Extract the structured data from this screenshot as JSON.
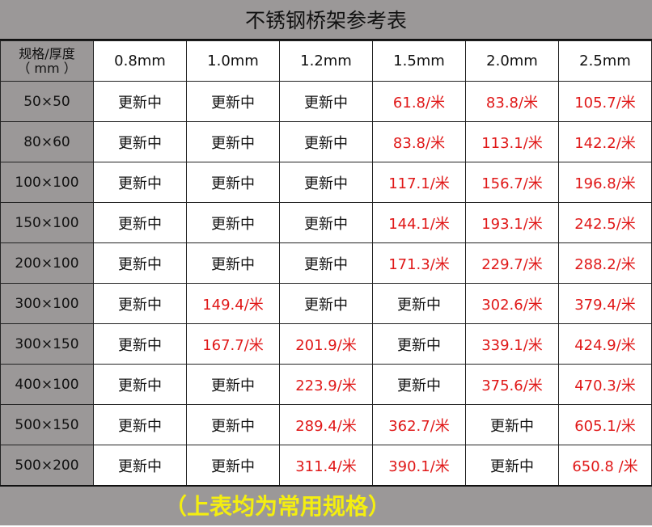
{
  "title": "不锈钢桥架参考表",
  "header": {
    "corner_line1": "规格/厚度",
    "corner_line2": "（ mm ）",
    "columns": [
      "0.8mm",
      "1.0mm",
      "1.2mm",
      "1.5mm",
      "2.0mm",
      "2.5mm"
    ]
  },
  "rows": [
    {
      "spec": "50×50",
      "values": [
        "更新中",
        "更新中",
        "更新中",
        "61.8/米",
        "83.8/米",
        "105.7/米"
      ]
    },
    {
      "spec": "80×60",
      "values": [
        "更新中",
        "更新中",
        "更新中",
        "83.8/米",
        "113.1/米",
        "142.2/米"
      ]
    },
    {
      "spec": "100×100",
      "values": [
        "更新中",
        "更新中",
        "更新中",
        "117.1/米",
        "156.7/米",
        "196.8/米"
      ]
    },
    {
      "spec": "150×100",
      "values": [
        "更新中",
        "更新中",
        "更新中",
        "144.1/米",
        "193.1/米",
        "242.5/米"
      ]
    },
    {
      "spec": "200×100",
      "values": [
        "更新中",
        "更新中",
        "更新中",
        "171.3/米",
        "229.7/米",
        "288.2/米"
      ]
    },
    {
      "spec": "300×100",
      "values": [
        "更新中",
        "149.4/米",
        "更新中",
        "更新中",
        "302.6/米",
        "379.4/米"
      ]
    },
    {
      "spec": "300×150",
      "values": [
        "更新中",
        "167.7/米",
        "201.9/米",
        "更新中",
        "339.1/米",
        "424.9/米"
      ]
    },
    {
      "spec": "400×100",
      "values": [
        "更新中",
        "更新中",
        "223.9/米",
        "更新中",
        "375.6/米",
        "470.3/米"
      ]
    },
    {
      "spec": "500×150",
      "values": [
        "更新中",
        "更新中",
        "289.4/米",
        "362.7/米",
        "更新中",
        "605.1/米"
      ]
    },
    {
      "spec": "500×200",
      "values": [
        "更新中",
        "更新中",
        "311.4/米",
        "390.1/米",
        "更新中",
        "650.8 /米"
      ]
    }
  ],
  "footer": "（上表均为常用规格）",
  "colors": {
    "header_bg": "#9b9898",
    "price": "#e01818",
    "pending": "#111111",
    "footer_text": "#f4ee10"
  }
}
